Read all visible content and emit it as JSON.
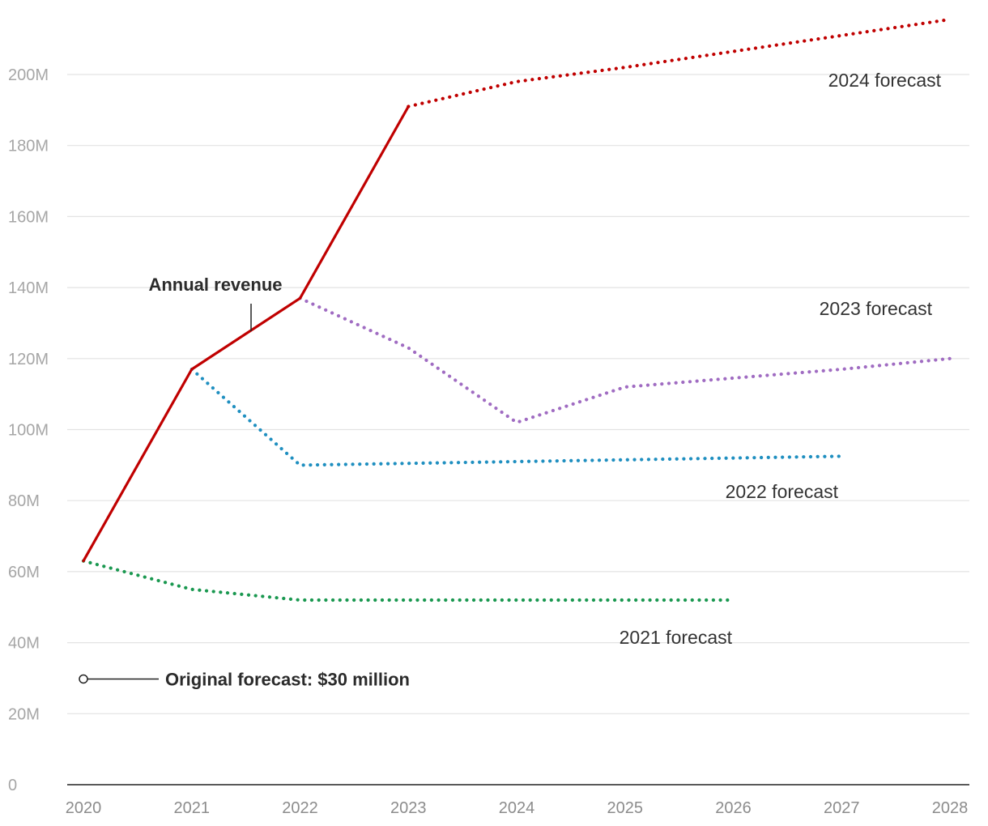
{
  "chart_data": {
    "type": "line",
    "title": "",
    "xlabel": "",
    "ylabel": "",
    "xlim": [
      2020,
      2028
    ],
    "ylim": [
      0,
      215
    ],
    "grid": true,
    "x_ticks": [
      "2020",
      "2021",
      "2022",
      "2023",
      "2024",
      "2025",
      "2026",
      "2027",
      "2028"
    ],
    "y_ticks": [
      {
        "value": 0,
        "label": "0"
      },
      {
        "value": 20,
        "label": "20M"
      },
      {
        "value": 40,
        "label": "40M"
      },
      {
        "value": 60,
        "label": "60M"
      },
      {
        "value": 80,
        "label": "80M"
      },
      {
        "value": 100,
        "label": "100M"
      },
      {
        "value": 120,
        "label": "120M"
      },
      {
        "value": 140,
        "label": "140M"
      },
      {
        "value": 160,
        "label": "160M"
      },
      {
        "value": 180,
        "label": "180M"
      },
      {
        "value": 200,
        "label": "200M"
      }
    ],
    "series": [
      {
        "id": "annual-revenue",
        "name": "Annual revenue",
        "style": "solid",
        "color": "#c00000",
        "x": [
          2020,
          2021,
          2022,
          2023
        ],
        "y": [
          63,
          117,
          137,
          191
        ]
      },
      {
        "id": "forecast-2021",
        "name": "2021 forecast",
        "style": "dotted",
        "color": "#1a9850",
        "x": [
          2020,
          2021,
          2022,
          2023,
          2024,
          2025,
          2026
        ],
        "y": [
          63,
          55,
          52,
          52,
          52,
          52,
          52
        ]
      },
      {
        "id": "forecast-2022",
        "name": "2022 forecast",
        "style": "dotted",
        "color": "#1f8fc0",
        "x": [
          2021,
          2022,
          2023,
          2024,
          2025,
          2026,
          2027
        ],
        "y": [
          117,
          90,
          90.5,
          91,
          91.5,
          92,
          92.5
        ]
      },
      {
        "id": "forecast-2023",
        "name": "2023 forecast",
        "style": "dotted",
        "color": "#a06cc2",
        "x": [
          2022,
          2023,
          2024,
          2025,
          2026,
          2027,
          2028
        ],
        "y": [
          137,
          123,
          102,
          112,
          114.5,
          117,
          120
        ]
      },
      {
        "id": "forecast-2024",
        "name": "2024 forecast",
        "style": "dotted",
        "color": "#c00000",
        "x": [
          2023,
          2024,
          2025,
          2026,
          2027,
          2028
        ],
        "y": [
          191,
          198,
          202,
          206.5,
          211,
          215.5
        ]
      }
    ],
    "labels": [
      {
        "series": "annual-revenue",
        "text": "Annual revenue",
        "bold": true
      },
      {
        "series": "forecast-2021",
        "text": "2021 forecast",
        "bold": false
      },
      {
        "series": "forecast-2022",
        "text": "2022 forecast",
        "bold": false
      },
      {
        "series": "forecast-2023",
        "text": "2023 forecast",
        "bold": false
      },
      {
        "series": "forecast-2024",
        "text": "2024 forecast",
        "bold": false
      }
    ],
    "annotations": [
      {
        "id": "original-forecast",
        "x": 2020,
        "y": 30,
        "text": "Original forecast: $30 million",
        "marker": "open-circle"
      }
    ]
  }
}
